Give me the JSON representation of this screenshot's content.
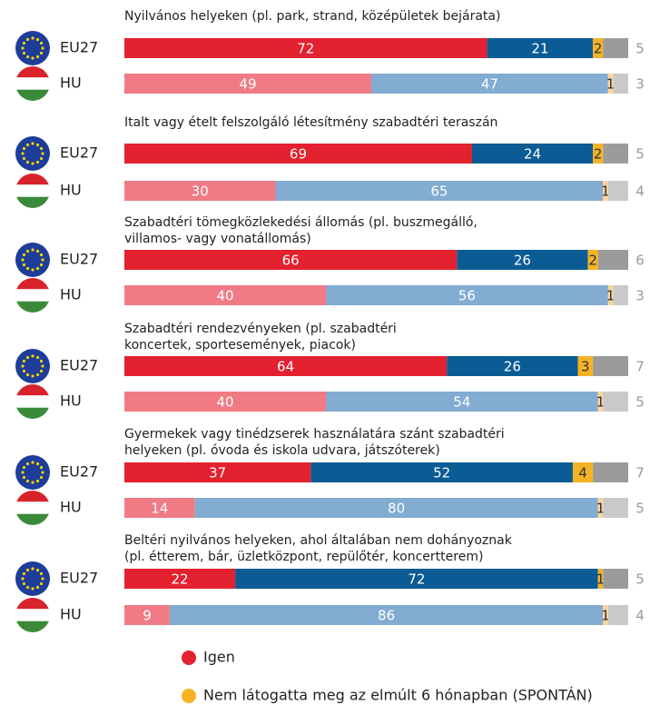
{
  "chart_data": {
    "type": "bar",
    "orientation": "horizontal",
    "stacked": true,
    "groups": [
      [
        "Nyilvános helyeken (pl. park, strand, középületek bejárata)"
      ],
      [
        "Italt vagy ételt felszolgáló létesítmény szabadtéri teraszán"
      ],
      [
        "Szabadtéri tömegközlekedési állomás (pl. buszmegálló,",
        "villamos- vagy vonatállomás)"
      ],
      [
        "Szabadtéri rendezvényeken (pl. szabadtéri",
        "koncertek, sportesemények, piacok)"
      ],
      [
        "Gyermekek vagy tinédzserek használatára szánt szabadtéri",
        "helyeken (pl. óvoda és iskola udvara, játszóterek)"
      ],
      [
        "Beltéri nyilvános helyeken, ahol általában nem dohányoznak",
        "(pl. étterem, bár, üzletközpont, repülőtér, koncertterem)"
      ]
    ],
    "categories": [
      "EU27",
      "HU",
      "EU27",
      "HU",
      "EU27",
      "HU",
      "EU27",
      "HU",
      "EU27",
      "HU",
      "EU27",
      "HU"
    ],
    "series": [
      {
        "name": "Igen",
        "color": "#e3212f",
        "light_color": "#f07b85",
        "values": [
          72,
          49,
          69,
          30,
          66,
          40,
          64,
          40,
          37,
          14,
          22,
          9
        ]
      },
      {
        "color": "#0b5b94",
        "light_color": "#82acd1",
        "values": [
          21,
          47,
          24,
          65,
          26,
          56,
          26,
          54,
          52,
          80,
          72,
          86
        ]
      },
      {
        "name": "Nem látogatta meg az elmúlt 6 hónapban (SPONTÁN)",
        "color": "#f5b324",
        "light_color": "#fcd49a",
        "values": [
          2,
          1,
          2,
          1,
          2,
          1,
          3,
          1,
          4,
          1,
          1,
          1
        ]
      },
      {
        "color": "#9b9b9b",
        "light_color": "#c9c9c9",
        "values": [
          5,
          3,
          5,
          4,
          6,
          3,
          7,
          5,
          7,
          5,
          5,
          4
        ]
      }
    ]
  }
}
